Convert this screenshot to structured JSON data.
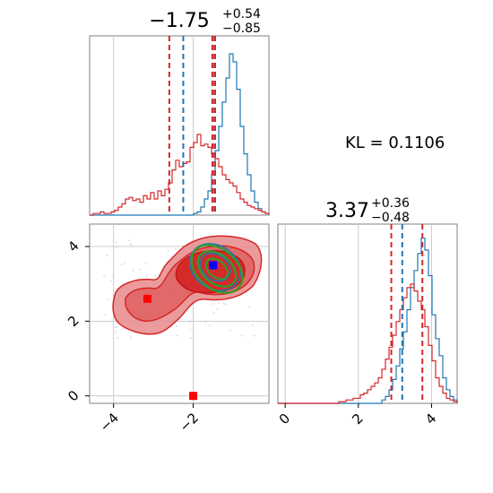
{
  "kl_annotation": "KL = 0.1106",
  "colors": {
    "blue_series": "#1f77b4",
    "red_series": "#d62728",
    "green_contours": "#2ca02c",
    "blue_marker": "#0000ff",
    "red_marker": "#ff0000",
    "grid": "#cccccc",
    "frame": "#808080"
  },
  "chart_data": [
    {
      "type": "histogram",
      "panel": "top-left",
      "title": {
        "value": "−1.75",
        "plus": "+0.54",
        "minus": "−0.85"
      },
      "xlim": [
        -4.6,
        -0.1
      ],
      "grid": true,
      "vlines": {
        "blue": [
          -2.25,
          -1.5
        ],
        "red": [
          -2.6,
          -1.45,
          -1.52
        ]
      },
      "series": [
        {
          "color": "#1f77b4",
          "bins_start": -4.6,
          "bin_width": 0.09,
          "counts": [
            0,
            0,
            0,
            0,
            0,
            0,
            0,
            0,
            0,
            0,
            0,
            0,
            0,
            0,
            0,
            0,
            0,
            0,
            0,
            0,
            0,
            0,
            0,
            0,
            0,
            0,
            0,
            0,
            0,
            0.01,
            0.02,
            0.05,
            0.1,
            0.15,
            0.25,
            0.4,
            0.55,
            0.7,
            0.85,
            1.0,
            0.95,
            0.78,
            0.55,
            0.38,
            0.25,
            0.15,
            0.08,
            0.04,
            0.02,
            0.01
          ]
        },
        {
          "color": "#d62728",
          "bins_start": -4.6,
          "bin_width": 0.09,
          "counts": [
            0,
            0.01,
            0.01,
            0.02,
            0.01,
            0.01,
            0.02,
            0.03,
            0.05,
            0.07,
            0.1,
            0.11,
            0.09,
            0.1,
            0.08,
            0.12,
            0.1,
            0.14,
            0.1,
            0.15,
            0.12,
            0.16,
            0.2,
            0.28,
            0.34,
            0.3,
            0.32,
            0.33,
            0.42,
            0.45,
            0.5,
            0.43,
            0.44,
            0.42,
            0.38,
            0.35,
            0.3,
            0.25,
            0.22,
            0.2,
            0.18,
            0.14,
            0.1,
            0.08,
            0.06,
            0.05,
            0.04,
            0.03,
            0.02,
            0.01
          ]
        }
      ]
    },
    {
      "type": "histogram",
      "panel": "bottom-right",
      "title": {
        "value": "3.37",
        "plus": "+0.36",
        "minus": "−0.48"
      },
      "xlim": [
        -0.2,
        4.7
      ],
      "xticks": [
        "0",
        "2",
        "4"
      ],
      "xtick_values": [
        0,
        2,
        4
      ],
      "grid": true,
      "vlines": {
        "blue": [
          3.2
        ],
        "red": [
          2.9,
          3.75
        ]
      },
      "series": [
        {
          "color": "#1f77b4",
          "bins_start": -0.2,
          "bin_width": 0.098,
          "counts": [
            0,
            0,
            0,
            0,
            0,
            0,
            0,
            0,
            0,
            0,
            0,
            0,
            0,
            0,
            0,
            0,
            0,
            0,
            0,
            0,
            0,
            0,
            0,
            0,
            0,
            0,
            0,
            0,
            0,
            0.02,
            0.04,
            0.08,
            0.14,
            0.22,
            0.32,
            0.42,
            0.55,
            0.68,
            0.78,
            0.88,
            0.97,
            0.9,
            0.75,
            0.52,
            0.38,
            0.28,
            0.15,
            0.08,
            0.04,
            0.02
          ]
        },
        {
          "color": "#d62728",
          "bins_start": -0.2,
          "bin_width": 0.098,
          "counts": [
            0,
            0,
            0,
            0,
            0,
            0,
            0,
            0,
            0,
            0,
            0,
            0,
            0,
            0,
            0,
            0,
            0,
            0.01,
            0.01,
            0.02,
            0.02,
            0.03,
            0.03,
            0.05,
            0.06,
            0.08,
            0.1,
            0.12,
            0.15,
            0.2,
            0.26,
            0.33,
            0.4,
            0.48,
            0.55,
            0.62,
            0.68,
            0.7,
            0.66,
            0.6,
            0.55,
            0.45,
            0.34,
            0.25,
            0.15,
            0.1,
            0.06,
            0.03,
            0.02,
            0.01
          ]
        }
      ]
    },
    {
      "type": "contour",
      "panel": "bottom-left",
      "xlim": [
        -4.6,
        -0.1
      ],
      "ylim": [
        -0.2,
        4.6
      ],
      "xticks": [
        "−4",
        "−2"
      ],
      "xtick_values": [
        -4,
        -2
      ],
      "yticks": [
        "0",
        "2",
        "4"
      ],
      "ytick_values": [
        0,
        2,
        4
      ],
      "grid": true,
      "markers": [
        {
          "color": "#0000ff",
          "x": -1.5,
          "y": 3.5
        },
        {
          "color": "#ff0000",
          "x": -3.15,
          "y": 2.6
        },
        {
          "color": "#ff0000",
          "x": -2.0,
          "y": 0.0
        }
      ]
    }
  ]
}
